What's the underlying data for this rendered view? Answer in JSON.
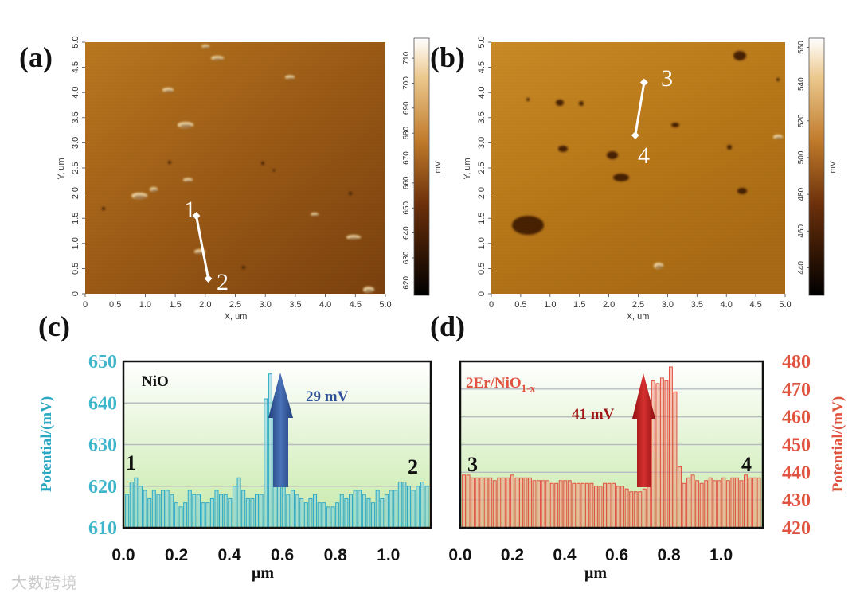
{
  "panels": {
    "a": "(a)",
    "b": "(b)",
    "c": "(c)",
    "d": "(d)"
  },
  "afm": {
    "x_axis_label": "X, um",
    "y_axis_label": "Y, um",
    "colorbar_unit": "mV",
    "x_ticks": [
      "0",
      "0.5",
      "1.0",
      "1.5",
      "2.0",
      "2.5",
      "3.0",
      "3.5",
      "4.0",
      "4.5",
      "5.0"
    ],
    "y_ticks": [
      "0",
      "0.5",
      "1.0",
      "1.5",
      "2.0",
      "2.5",
      "3.0",
      "3.5",
      "4.0",
      "4.5",
      "5.0"
    ],
    "a": {
      "colorbar_ticks": [
        "620",
        "630",
        "640",
        "650",
        "660",
        "670",
        "680",
        "690",
        "700",
        "710"
      ],
      "colorbar_range": [
        615,
        718
      ],
      "marker_start": "1",
      "marker_end": "2",
      "line_um": {
        "x1": 1.85,
        "y1": 1.55,
        "x2": 2.05,
        "y2": 0.3
      }
    },
    "b": {
      "colorbar_ticks": [
        "440",
        "460",
        "480",
        "500",
        "520",
        "540",
        "560"
      ],
      "colorbar_range": [
        425,
        565
      ],
      "marker_start": "3",
      "marker_end": "4",
      "line_um": {
        "x1": 2.6,
        "y1": 4.2,
        "x2": 2.45,
        "y2": 3.15
      }
    }
  },
  "chart_data": [
    {
      "type": "bar",
      "panel": "c",
      "ylabel": "Potential/(mV)",
      "xlabel": "μm",
      "ylim": [
        610,
        650
      ],
      "y_ticks": [
        610,
        620,
        630,
        640,
        650
      ],
      "xlim": [
        0,
        1.16
      ],
      "x_ticks": [
        "0.0",
        "0.2",
        "0.4",
        "0.6",
        "0.8",
        "1.0"
      ],
      "grid": true,
      "label": "NiO",
      "annotation": "29 mV",
      "start_label": "1",
      "end_label": "2",
      "series": [
        {
          "values": [
            618,
            621,
            622,
            620,
            619,
            617,
            619,
            618,
            619,
            619,
            618,
            616,
            615,
            616,
            619,
            618,
            618,
            616,
            616,
            617,
            619,
            618,
            618,
            617,
            620,
            622,
            619,
            617,
            617,
            618,
            618,
            641,
            647,
            640,
            633,
            622,
            618,
            619,
            618,
            617,
            616,
            617,
            618,
            616,
            616,
            615,
            615,
            616,
            618,
            617,
            618,
            619,
            619,
            618,
            617,
            616,
            619,
            617,
            618,
            619,
            619,
            621,
            621,
            620,
            619,
            620,
            621,
            620
          ]
        }
      ]
    },
    {
      "type": "bar",
      "panel": "d",
      "ylabel": "Potential/(mV)",
      "xlabel": "μm",
      "ylim": [
        420,
        480
      ],
      "y_ticks": [
        420,
        430,
        440,
        450,
        460,
        470,
        480
      ],
      "xlim": [
        0,
        1.16
      ],
      "x_ticks": [
        "0.0",
        "0.2",
        "0.4",
        "0.6",
        "0.8",
        "1.0"
      ],
      "grid": true,
      "label_main": "2Er/NiO",
      "label_sub": "1-x",
      "annotation": "41 mV",
      "start_label": "3",
      "end_label": "4",
      "series": [
        {
          "values": [
            439,
            439,
            438,
            438,
            438,
            438,
            438,
            437,
            438,
            438,
            438,
            439,
            438,
            438,
            438,
            438,
            437,
            437,
            437,
            437,
            436,
            436,
            437,
            437,
            437,
            436,
            436,
            436,
            436,
            436,
            435,
            435,
            436,
            436,
            436,
            435,
            435,
            434,
            433,
            433,
            433,
            434,
            448,
            473,
            472,
            474,
            473,
            478,
            469,
            442,
            436,
            438,
            439,
            437,
            436,
            437,
            438,
            437,
            437,
            438,
            437,
            438,
            438,
            437,
            439,
            438,
            438,
            438
          ]
        }
      ]
    }
  ],
  "watermark": "大数跨境"
}
